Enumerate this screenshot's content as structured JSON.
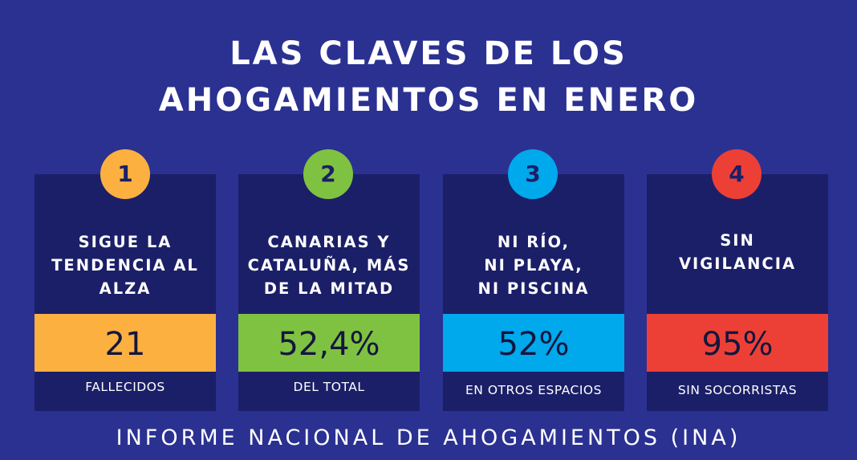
{
  "title": {
    "line1": "LAS CLAVES DE LOS",
    "line2": "AHOGAMIENTOS EN ENERO"
  },
  "cards": [
    {
      "number": "1",
      "heading": "SIGUE LA\nTENDENCIA AL\nALZA",
      "value": "21",
      "caption": "FALLECIDOS",
      "color": "#fbb040"
    },
    {
      "number": "2",
      "heading": "CANARIAS Y\nCATALUÑA, MÁS\nDE LA MITAD",
      "value": "52,4%",
      "caption": "DEL TOTAL",
      "color": "#7fc241"
    },
    {
      "number": "3",
      "heading": "NI RÍO,\nNI PLAYA,\nNI PISCINA",
      "value": "52%",
      "caption": "EN OTROS ESPACIOS",
      "color": "#00a8ec"
    },
    {
      "number": "4",
      "heading": "SIN\nVIGILANCIA",
      "value": "95%",
      "caption": "SIN SOCORRISTAS",
      "color": "#ec4036"
    }
  ],
  "footer": "INFORME NACIONAL DE AHOGAMIENTOS (INA)",
  "colors": {
    "background": "#2b3191",
    "card": "#1b1f68",
    "text": "#ffffff"
  }
}
